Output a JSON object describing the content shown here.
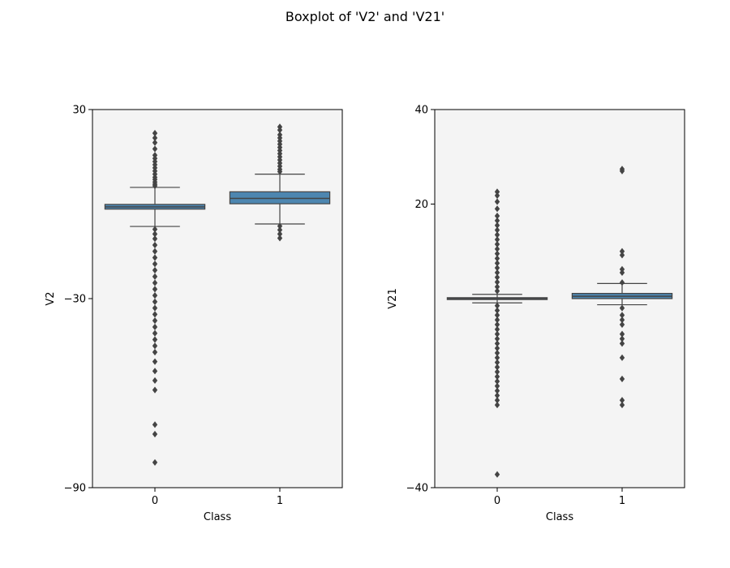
{
  "title": "Boxplot of 'V2' and 'V21'",
  "chart_data": [
    {
      "type": "box",
      "xlabel": "Class",
      "ylabel": "V2",
      "categories": [
        "0",
        "1"
      ],
      "yticks": [
        "30",
        "−30",
        "−90"
      ],
      "ytick_values": [
        30,
        -30,
        -90
      ],
      "ylim": [
        -90,
        30
      ],
      "grid": false,
      "background": "#f4f4f4",
      "box_color": "#4d86b0",
      "line_color": "#444444",
      "boxes": [
        {
          "category": "0",
          "whisker_low": -7.1,
          "q1": -1.6,
          "median": -0.9,
          "q3": -0.1,
          "whisker_high": 5.3,
          "outliers": [
            22.5,
            21.0,
            19.5,
            17.5,
            15.5,
            14.5,
            13.5,
            12.5,
            11.5,
            10.5,
            9.5,
            8.5,
            7.8,
            7.0,
            6.3,
            5.8,
            -8.0,
            -9.5,
            -11,
            -13,
            -15,
            -17,
            -19,
            -21,
            -23,
            -25,
            -27,
            -29,
            -31,
            -33,
            -35,
            -37,
            -39,
            -41,
            -43,
            -45,
            -47,
            -50,
            -53,
            -56,
            -59,
            -70,
            -73,
            -82
          ]
        },
        {
          "category": "1",
          "whisker_low": -6.3,
          "q1 ": 0.1,
          "q1": 0.1,
          "median": 1.8,
          "q3": 3.9,
          "whisker_high": 9.5,
          "outliers": [
            24.5,
            23.5,
            22.0,
            21.0,
            20.0,
            19.0,
            18.0,
            17.0,
            16.0,
            15.0,
            14.0,
            13.0,
            12.0,
            11.0,
            10.3,
            -7.0,
            -8.2,
            -9.5,
            -10.8
          ]
        }
      ]
    },
    {
      "type": "box",
      "xlabel": "Class",
      "ylabel": "V21",
      "categories": [
        "0",
        "1"
      ],
      "yticks": [
        "40",
        "20",
        "−40"
      ],
      "ytick_values": [
        40,
        20,
        -40
      ],
      "ylim": [
        -40,
        40
      ],
      "grid": false,
      "background": "#f4f4f4",
      "box_color": "#4d86b0",
      "line_color": "#444444",
      "boxes": [
        {
          "category": "0",
          "whisker_low": -0.9,
          "q1": -0.2,
          "median": 0.0,
          "q3": 0.2,
          "whisker_high": 0.9,
          "outliers": [
            22.6,
            21.8,
            20.5,
            19.0,
            17.5,
            16.5,
            15.5,
            14.5,
            13.5,
            12.5,
            11.5,
            10.5,
            9.5,
            8.5,
            7.5,
            6.5,
            5.5,
            4.5,
            3.5,
            2.5,
            1.6,
            -1.5,
            -2.5,
            -3.5,
            -4.5,
            -5.5,
            -6.5,
            -7.5,
            -8.5,
            -9.5,
            -10.5,
            -11.5,
            -12.5,
            -13.5,
            -14.5,
            -15.5,
            -16.5,
            -17.5,
            -18.5,
            -19.5,
            -20.5,
            -21.5,
            -22.5,
            -37.2
          ]
        },
        {
          "category": "1",
          "whisker_low": -1.3,
          "q1": 0.0,
          "median": 0.5,
          "q3": 1.1,
          "whisker_high": 3.2,
          "outliers": [
            27.4,
            27.0,
            10.0,
            9.2,
            6.2,
            5.5,
            3.4,
            -2.0,
            -3.5,
            -4.5,
            -5.5,
            -7.5,
            -8.5,
            -9.5,
            -12.5,
            -17.0,
            -21.5,
            -22.5
          ]
        }
      ]
    }
  ]
}
